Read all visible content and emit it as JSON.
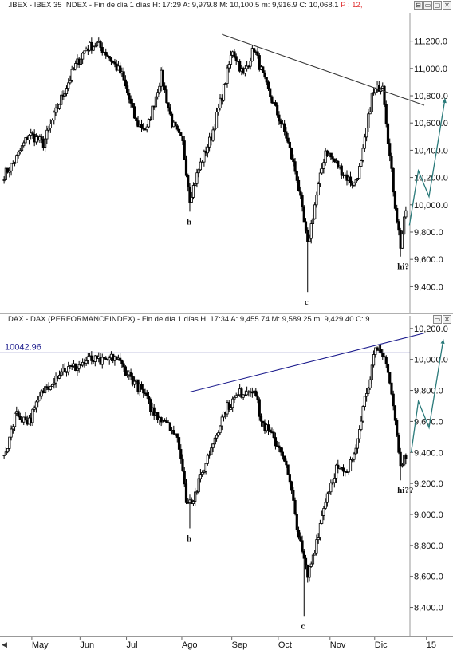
{
  "panels": {
    "ibex": {
      "title_prefix": ".IBEX - IBEX 35 INDEX - Fin de día 1 días  H: 17:29  A: 9,979.8  M: 10,100.5  m: 9,916.9  C: 10,068.1 ",
      "title_p": "P : 12,"
    },
    "dax": {
      "title_prefix": "DAX - DAX (PERFORMANCEINDEX) - Fin de día 1 días  H: 17:34  A: 9,455.74  M: 9,589.25  m: 9,429.40  C: 9"
    }
  },
  "window_buttons": [
    "⊟",
    "▭",
    "▢",
    "✕"
  ],
  "colors": {
    "candle": "#000000",
    "trendline_ibex": "#333333",
    "trendline_dax": "#1a1a8c",
    "projection": "#2a7a7a",
    "hline": "#1a1a8c",
    "hline_label": "#1a1a8c"
  },
  "chart_data": [
    {
      "type": "candlestick",
      "name_text": "IBEX 35 INDEX",
      "ylim": [
        9250,
        11350
      ],
      "y_ticks": [
        "11,200.0",
        "11,000.0",
        "10,800.0",
        "10,600.0",
        "10,400.0",
        "10,200.0",
        "10,000.0",
        "9,800.0",
        "9,600.0",
        "9,400.0"
      ],
      "y_tick_values": [
        11200,
        11000,
        10800,
        10600,
        10400,
        10200,
        10000,
        9800,
        9600,
        9400
      ],
      "anchors": [
        [
          0,
          10220
        ],
        [
          6,
          10320
        ],
        [
          14,
          10520
        ],
        [
          22,
          10450
        ],
        [
          32,
          10780
        ],
        [
          40,
          11020
        ],
        [
          46,
          11150
        ],
        [
          52,
          11180
        ],
        [
          58,
          11100
        ],
        [
          66,
          10950
        ],
        [
          74,
          10600
        ],
        [
          80,
          10550
        ],
        [
          88,
          10950
        ],
        [
          94,
          10600
        ],
        [
          100,
          10450
        ],
        [
          104,
          10050
        ],
        [
          110,
          10300
        ],
        [
          116,
          10500
        ],
        [
          122,
          10800
        ],
        [
          128,
          11140
        ],
        [
          134,
          10950
        ],
        [
          140,
          11150
        ],
        [
          146,
          10900
        ],
        [
          152,
          10700
        ],
        [
          158,
          10500
        ],
        [
          164,
          10200
        ],
        [
          170,
          9700
        ],
        [
          174,
          10000
        ],
        [
          180,
          10400
        ],
        [
          186,
          10300
        ],
        [
          192,
          10200
        ],
        [
          196,
          10150
        ],
        [
          200,
          10300
        ],
        [
          206,
          10800
        ],
        [
          212,
          10900
        ],
        [
          216,
          10350
        ],
        [
          219,
          10000
        ],
        [
          222,
          9700
        ],
        [
          226,
          10050
        ]
      ],
      "annotations": [
        {
          "label": "h",
          "bar": 104,
          "value": 9950
        },
        {
          "label": "c",
          "bar": 170,
          "value": 9360
        },
        {
          "label": "hi?",
          "bar": 222,
          "value": 9620
        }
      ],
      "trendline": {
        "from": [
          122,
          11250
        ],
        "to": [
          265,
          10730
        ]
      },
      "projection": [
        [
          227,
          9850
        ],
        [
          232,
          10250
        ],
        [
          238,
          10060
        ],
        [
          247,
          10780
        ]
      ]
    },
    {
      "type": "candlestick",
      "name_text": "DAX (PERFORMANCEINDEX)",
      "ylim": [
        8300,
        10230
      ],
      "y_ticks": [
        "10,200.0",
        "10,000.0",
        "9,800.0",
        "9,600.0",
        "9,400.0",
        "9,200.0",
        "9,000.0",
        "8,800.0",
        "8,600.0",
        "8,400.0"
      ],
      "y_tick_values": [
        10200,
        10000,
        9800,
        9600,
        9400,
        9200,
        9000,
        8800,
        8600,
        8400
      ],
      "hline": {
        "value": 10042.96,
        "label": "10042.96"
      },
      "anchors": [
        [
          0,
          9350
        ],
        [
          6,
          9650
        ],
        [
          14,
          9600
        ],
        [
          22,
          9800
        ],
        [
          32,
          9930
        ],
        [
          40,
          9950
        ],
        [
          48,
          10000
        ],
        [
          56,
          9980
        ],
        [
          62,
          10020
        ],
        [
          70,
          9900
        ],
        [
          78,
          9780
        ],
        [
          84,
          9650
        ],
        [
          92,
          9600
        ],
        [
          98,
          9450
        ],
        [
          102,
          9100
        ],
        [
          106,
          9100
        ],
        [
          112,
          9300
        ],
        [
          118,
          9500
        ],
        [
          124,
          9680
        ],
        [
          132,
          9780
        ],
        [
          140,
          9820
        ],
        [
          144,
          9600
        ],
        [
          150,
          9500
        ],
        [
          156,
          9400
        ],
        [
          160,
          9200
        ],
        [
          166,
          8800
        ],
        [
          170,
          8600
        ],
        [
          174,
          8780
        ],
        [
          180,
          9100
        ],
        [
          186,
          9300
        ],
        [
          192,
          9250
        ],
        [
          196,
          9400
        ],
        [
          202,
          9750
        ],
        [
          208,
          10050
        ],
        [
          214,
          10000
        ],
        [
          218,
          9700
        ],
        [
          222,
          9300
        ],
        [
          226,
          9420
        ]
      ],
      "annotations": [
        {
          "label": "h",
          "bar": 104,
          "value": 8910
        },
        {
          "label": "c",
          "bar": 168,
          "value": 8345
        },
        {
          "label": "hi??",
          "bar": 222,
          "value": 9220
        }
      ],
      "trendline": {
        "from": [
          104,
          9790
        ],
        "to": [
          246,
          10170
        ]
      },
      "projection": [
        [
          228,
          9400
        ],
        [
          232,
          9730
        ],
        [
          238,
          9560
        ],
        [
          246,
          10130
        ]
      ]
    }
  ],
  "x_axis": {
    "labels": [
      "May",
      "Jun",
      "Jul",
      "Ago",
      "Sep",
      "Oct",
      "Nov",
      "Dic",
      "15"
    ],
    "label_bars": [
      20,
      47,
      73,
      104,
      132,
      158,
      187,
      212,
      241
    ],
    "total_bars": 226
  }
}
